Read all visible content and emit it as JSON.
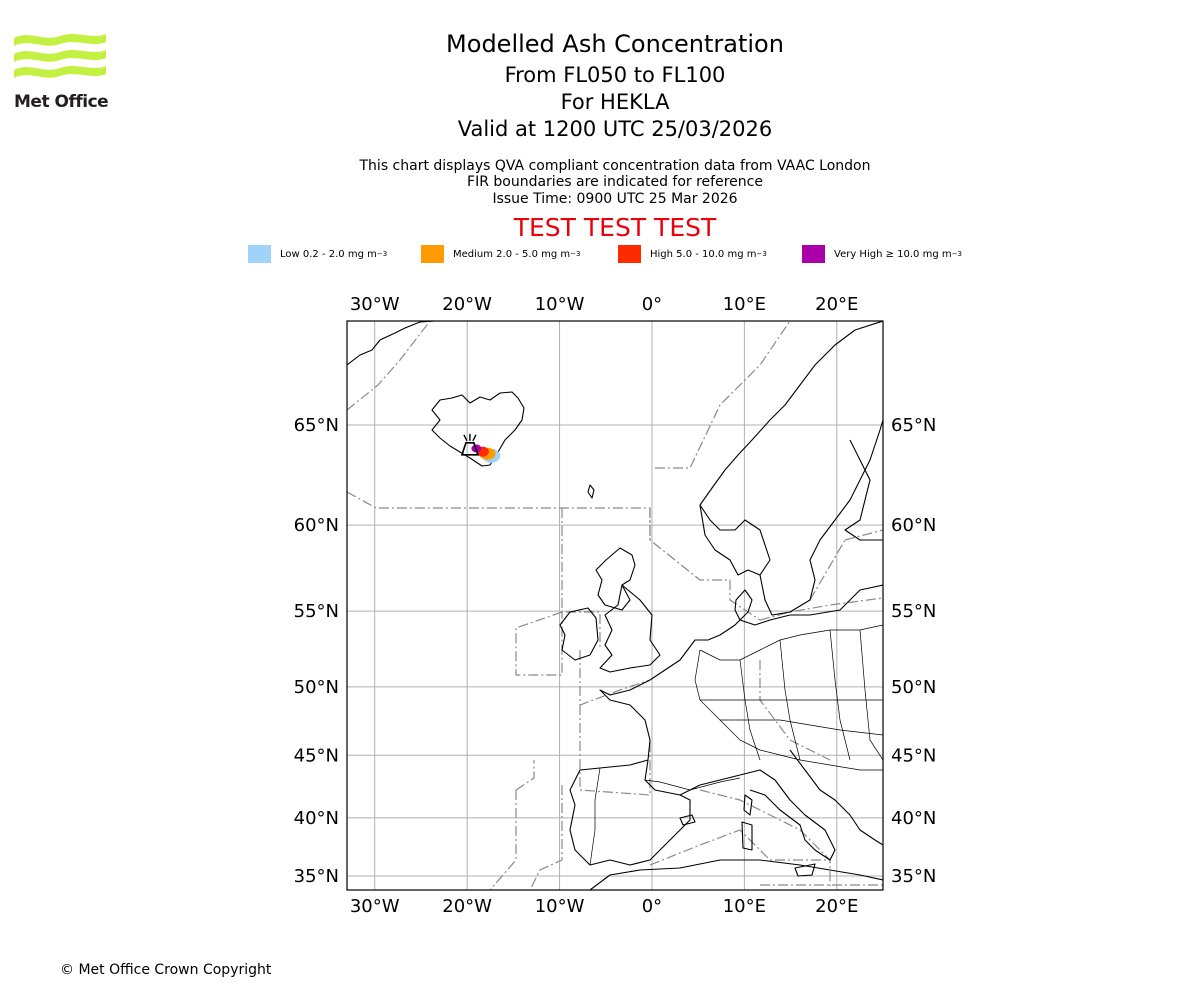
{
  "header": {
    "title": "Modelled Ash Concentration",
    "levels": "From FL050 to FL100",
    "volcano": "For HEKLA",
    "valid": "Valid at 1200 UTC 25/03/2026",
    "desc_line1": "This chart displays QVA compliant concentration data from VAAC London",
    "desc_line2": "FIR boundaries are indicated for reference",
    "issue_time": "Issue Time: 0900 UTC 25 Mar 2026",
    "test_banner": "TEST TEST TEST"
  },
  "logo": {
    "text": "Met Office",
    "color": "#c4f041"
  },
  "legend": [
    {
      "label": "Low 0.2 - 2.0 mg m",
      "exp": "−3",
      "color": "#9fd3fa"
    },
    {
      "label": "Medium 2.0 - 5.0 mg m",
      "exp": "−3",
      "color": "#ff9a00"
    },
    {
      "label": "High 5.0 - 10.0 mg m",
      "exp": "−3",
      "color": "#ff2a00"
    },
    {
      "label": "Very High  ≥  10.0 mg m",
      "exp": "−3",
      "color": "#aa00aa"
    }
  ],
  "map": {
    "lon_range": [
      -33,
      25
    ],
    "lat_range": [
      34,
      70
    ],
    "lon_ticks": [
      {
        "lon": -30,
        "label": "30°W"
      },
      {
        "lon": -20,
        "label": "20°W"
      },
      {
        "lon": -10,
        "label": "10°W"
      },
      {
        "lon": 0,
        "label": "0°"
      },
      {
        "lon": 10,
        "label": "10°E"
      },
      {
        "lon": 20,
        "label": "20°E"
      }
    ],
    "lat_ticks": [
      {
        "lat": 65,
        "label": "65°N"
      },
      {
        "lat": 60,
        "label": "60°N"
      },
      {
        "lat": 55,
        "label": "55°N"
      },
      {
        "lat": 50,
        "label": "50°N"
      },
      {
        "lat": 45,
        "label": "45°N"
      },
      {
        "lat": 40,
        "label": "40°N"
      },
      {
        "lat": 35,
        "label": "35°N"
      }
    ],
    "volcano": {
      "name": "HEKLA",
      "lon": -19.7,
      "lat": 63.98
    },
    "ash_plume": [
      {
        "level": "Low",
        "lon": -17.4,
        "lat": 63.55
      },
      {
        "level": "Medium",
        "lon": -17.8,
        "lat": 63.65
      },
      {
        "level": "High",
        "lon": -18.3,
        "lat": 63.75
      },
      {
        "level": "Very High",
        "lon": -19.0,
        "lat": 63.9
      }
    ]
  },
  "footer": {
    "copyright": "© Met Office Crown Copyright"
  }
}
